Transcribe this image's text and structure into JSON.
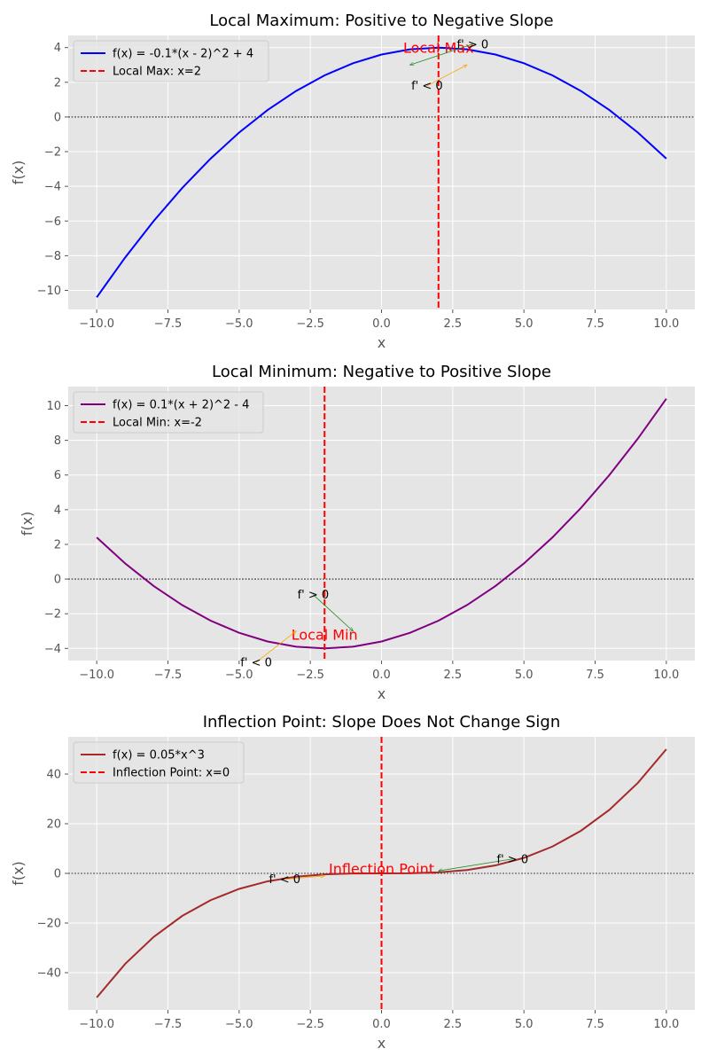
{
  "chart_data": [
    {
      "type": "line",
      "title": "Local Maximum: Positive to Negative Slope",
      "xlabel": "x",
      "ylabel": "f(x)",
      "xlim": [
        -11,
        11
      ],
      "ylim": [
        -11.1,
        4.7
      ],
      "xticks": [
        -10.0,
        -7.5,
        -5.0,
        -2.5,
        0.0,
        2.5,
        5.0,
        7.5,
        10.0
      ],
      "xtick_labels": [
        "−10.0",
        "−7.5",
        "−5.0",
        "−2.5",
        "0.0",
        "2.5",
        "5.0",
        "7.5",
        "10.0"
      ],
      "yticks": [
        -10,
        -8,
        -6,
        -4,
        -2,
        0,
        2,
        4
      ],
      "ytick_labels": [
        "−10",
        "−8",
        "−6",
        "−4",
        "−2",
        "0",
        "2",
        "4"
      ],
      "grid": true,
      "legend_position": "upper-left",
      "series": [
        {
          "name": "f(x) = -0.1*(x - 2)^2 + 4",
          "color": "#0000ff",
          "x": [
            -10,
            -9,
            -8,
            -7,
            -6,
            -5,
            -4,
            -3,
            -2,
            -1,
            0,
            1,
            2,
            3,
            4,
            5,
            6,
            7,
            8,
            9,
            10
          ],
          "y": [
            -10.4,
            -8.1,
            -6.0,
            -4.1,
            -2.4,
            -0.9,
            0.4,
            1.5,
            2.4,
            3.1,
            3.6,
            3.9,
            4.0,
            3.9,
            3.6,
            3.1,
            2.4,
            1.5,
            0.4,
            -0.9,
            -2.4
          ]
        }
      ],
      "vline": {
        "x": 2,
        "label": "Local Max: x=2",
        "color": "#ff0000"
      },
      "zero_line": true,
      "annotations": [
        {
          "text": "Local Max",
          "x": 2,
          "y": 4.0,
          "color": "#ff0000",
          "style": "red"
        },
        {
          "text": "f' > 0",
          "x": 3.2,
          "y": 4.2,
          "arrow_to": [
            1,
            3
          ],
          "arrow_color": "#228b22",
          "style": "normal"
        },
        {
          "text": "f' < 0",
          "x": 1.6,
          "y": 1.8,
          "arrow_to": [
            3,
            3
          ],
          "arrow_color": "#ffa500",
          "style": "normal"
        }
      ]
    },
    {
      "type": "line",
      "title": "Local Minimum: Negative to Positive Slope",
      "xlabel": "x",
      "ylabel": "f(x)",
      "xlim": [
        -11,
        11
      ],
      "ylim": [
        -4.7,
        11.1
      ],
      "xticks": [
        -10.0,
        -7.5,
        -5.0,
        -2.5,
        0.0,
        2.5,
        5.0,
        7.5,
        10.0
      ],
      "xtick_labels": [
        "−10.0",
        "−7.5",
        "−5.0",
        "−2.5",
        "0.0",
        "2.5",
        "5.0",
        "7.5",
        "10.0"
      ],
      "yticks": [
        -4,
        -2,
        0,
        2,
        4,
        6,
        8,
        10
      ],
      "ytick_labels": [
        "−4",
        "−2",
        "0",
        "2",
        "4",
        "6",
        "8",
        "10"
      ],
      "grid": true,
      "legend_position": "upper-left",
      "series": [
        {
          "name": "f(x) = 0.1*(x + 2)^2 - 4",
          "color": "#800080",
          "x": [
            -10,
            -9,
            -8,
            -7,
            -6,
            -5,
            -4,
            -3,
            -2,
            -1,
            0,
            1,
            2,
            3,
            4,
            5,
            6,
            7,
            8,
            9,
            10
          ],
          "y": [
            2.4,
            0.9,
            -0.4,
            -1.5,
            -2.4,
            -3.1,
            -3.6,
            -3.9,
            -4.0,
            -3.9,
            -3.6,
            -3.1,
            -2.4,
            -1.5,
            -0.4,
            0.9,
            2.4,
            4.1,
            6.0,
            8.1,
            10.4
          ]
        }
      ],
      "vline": {
        "x": -2,
        "label": "Local Min: x=-2",
        "color": "#ff0000"
      },
      "zero_line": true,
      "annotations": [
        {
          "text": "Local Min",
          "x": -2,
          "y": -3.2,
          "color": "#ff0000",
          "style": "red"
        },
        {
          "text": "f' > 0",
          "x": -2.4,
          "y": -0.9,
          "arrow_to": [
            -1,
            -3
          ],
          "arrow_color": "#228b22",
          "style": "normal"
        },
        {
          "text": "f' < 0",
          "x": -4.4,
          "y": -4.8,
          "arrow_to": [
            -3,
            -3
          ],
          "arrow_color": "#ffa500",
          "style": "normal"
        }
      ]
    },
    {
      "type": "line",
      "title": "Inflection Point: Slope Does Not Change Sign",
      "xlabel": "x",
      "ylabel": "f(x)",
      "xlim": [
        -11,
        11
      ],
      "ylim": [
        -55,
        55
      ],
      "xticks": [
        -10.0,
        -7.5,
        -5.0,
        -2.5,
        0.0,
        2.5,
        5.0,
        7.5,
        10.0
      ],
      "xtick_labels": [
        "−10.0",
        "−7.5",
        "−5.0",
        "−2.5",
        "0.0",
        "2.5",
        "5.0",
        "7.5",
        "10.0"
      ],
      "yticks": [
        -40,
        -20,
        0,
        20,
        40
      ],
      "ytick_labels": [
        "−40",
        "−20",
        "0",
        "20",
        "40"
      ],
      "grid": true,
      "legend_position": "upper-left",
      "series": [
        {
          "name": "f(x) = 0.05*x^3",
          "color": "#a52a2a",
          "x": [
            -10,
            -9,
            -8,
            -7,
            -6,
            -5,
            -4,
            -3,
            -2,
            -1,
            0,
            1,
            2,
            3,
            4,
            5,
            6,
            7,
            8,
            9,
            10
          ],
          "y": [
            -50.0,
            -36.45,
            -25.6,
            -17.15,
            -10.8,
            -6.25,
            -3.2,
            -1.35,
            -0.4,
            -0.05,
            0.0,
            0.05,
            0.4,
            1.35,
            3.2,
            6.25,
            10.8,
            17.15,
            25.6,
            36.45,
            50.0
          ]
        }
      ],
      "vline": {
        "x": 0,
        "label": "Inflection Point: x=0",
        "color": "#ff0000"
      },
      "zero_line": true,
      "annotations": [
        {
          "text": "Inflection Point",
          "x": 0,
          "y": 2.0,
          "color": "#ff0000",
          "style": "red"
        },
        {
          "text": "f' > 0",
          "x": 4.6,
          "y": 5.8,
          "arrow_to": [
            2,
            1
          ],
          "arrow_color": "#228b22",
          "style": "normal"
        },
        {
          "text": "f' < 0",
          "x": -3.4,
          "y": -2.4,
          "arrow_to": [
            -2,
            -1
          ],
          "arrow_color": "#ffa500",
          "style": "normal"
        }
      ]
    }
  ]
}
